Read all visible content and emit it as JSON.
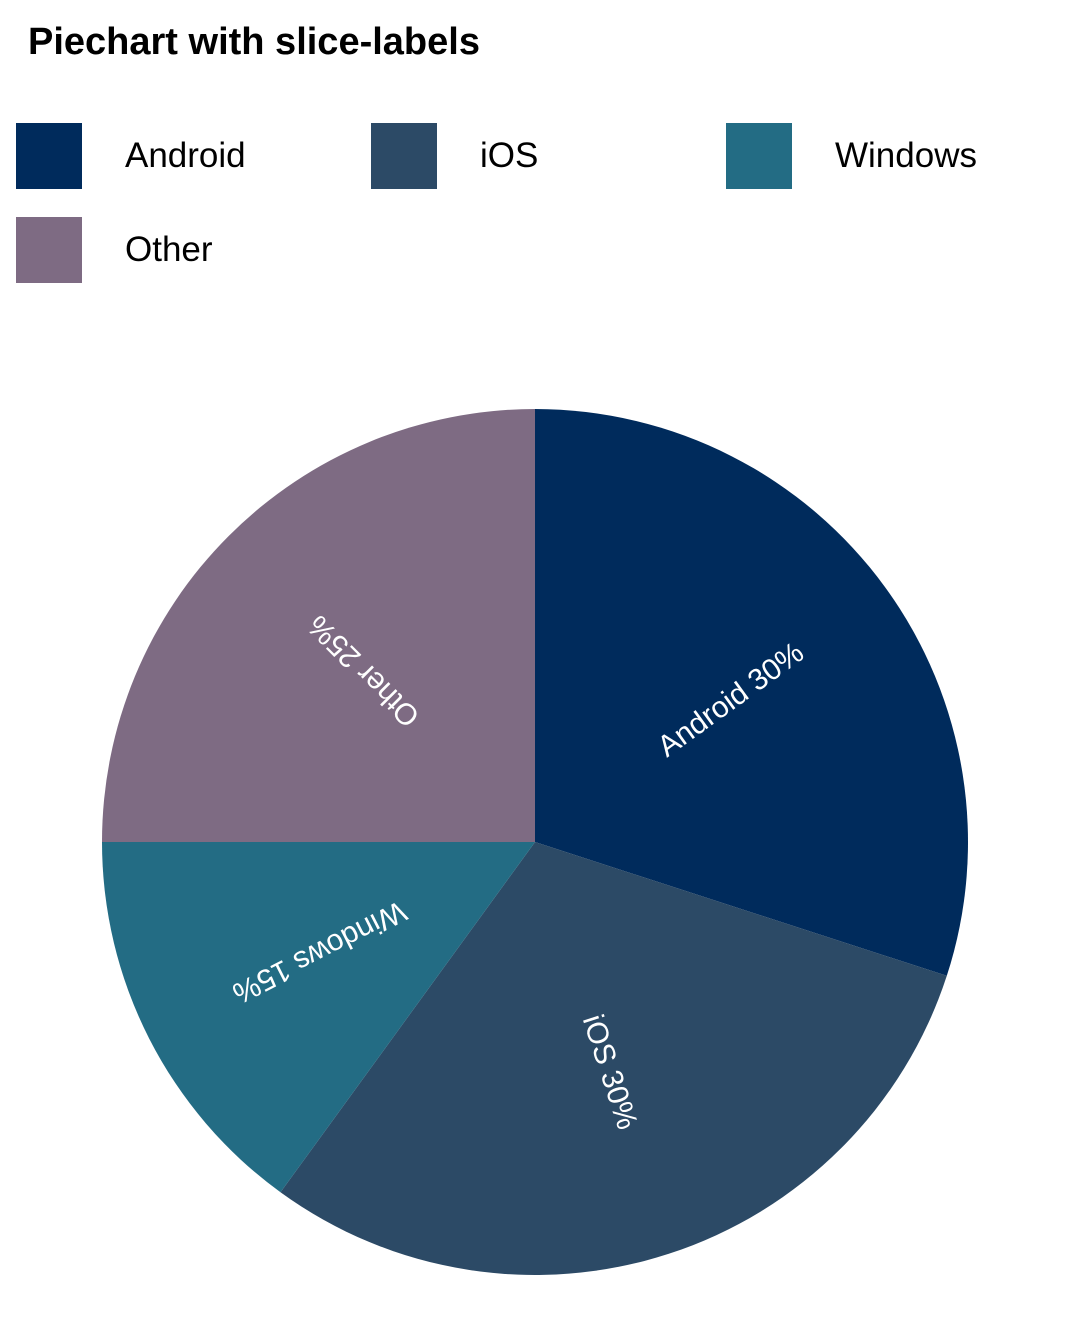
{
  "chart_data": {
    "type": "pie",
    "title": "Piechart with slice-labels",
    "slices": [
      {
        "label": "Android",
        "value": 30,
        "slice_label": "Android 30%",
        "color": "#002b5c"
      },
      {
        "label": "iOS",
        "value": 30,
        "slice_label": "iOS 30%",
        "color": "#2c4a66"
      },
      {
        "label": "Windows",
        "value": 15,
        "slice_label": "Windows 15%",
        "color": "#236c84"
      },
      {
        "label": "Other",
        "value": 25,
        "slice_label": "Other 25%",
        "color": "#7e6b83"
      }
    ],
    "start_angle": "12 o'clock",
    "direction": "clockwise",
    "legend_position": "top"
  }
}
